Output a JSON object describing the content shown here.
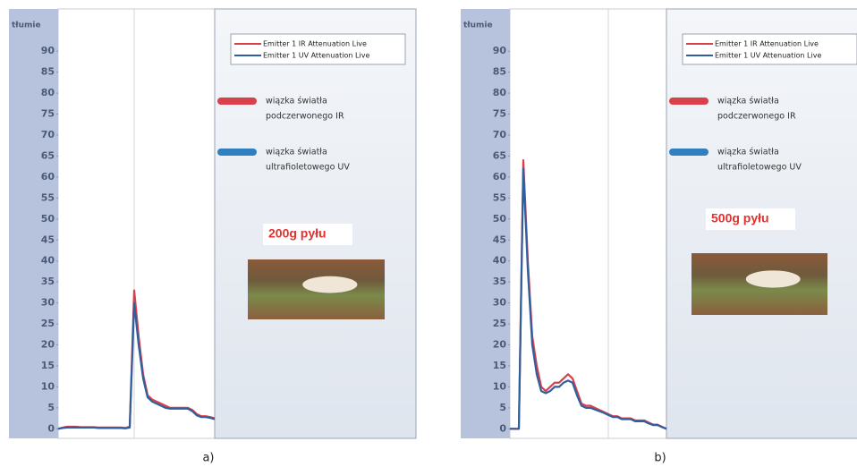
{
  "chart_data": [
    {
      "type": "line",
      "axis_label": "tłumie",
      "ylim": [
        -1,
        99
      ],
      "yticks": [
        0,
        5,
        10,
        15,
        20,
        25,
        30,
        35,
        40,
        45,
        50,
        55,
        60,
        65,
        70,
        75,
        80,
        85,
        90
      ],
      "series": [
        {
          "name": "Emitter 1 IR Attenuation Live",
          "color": "#d9404a",
          "values": [
            0,
            0.3,
            0.5,
            0.5,
            0.5,
            0.4,
            0.4,
            0.4,
            0.4,
            0.3,
            0.3,
            0.3,
            0.3,
            0.3,
            0.3,
            0.2,
            0.5,
            33,
            22,
            13,
            8,
            7,
            6.5,
            6,
            5.5,
            5,
            5,
            5,
            5,
            5,
            4.5,
            3.5,
            3,
            3,
            2.8,
            2.5
          ]
        },
        {
          "name": "Emitter 1 UV Attenuation Live",
          "color": "#2f5f9e",
          "values": [
            0,
            0.2,
            0.3,
            0.3,
            0.3,
            0.3,
            0.3,
            0.3,
            0.3,
            0.2,
            0.2,
            0.2,
            0.2,
            0.2,
            0.2,
            0.1,
            0.3,
            30,
            20,
            12,
            7.5,
            6.5,
            6,
            5.5,
            5,
            4.8,
            4.8,
            4.8,
            4.8,
            4.8,
            4.2,
            3.2,
            2.8,
            2.8,
            2.6,
            2.3
          ]
        }
      ],
      "annotations": [
        {
          "lines": [
            "wiązka światła",
            "podczerwonego IR"
          ],
          "color": "#d9404a"
        },
        {
          "lines": [
            "wiązka światła",
            "ultrafioletowego UV"
          ],
          "color": "#2f7fc1"
        }
      ],
      "highlight": "200g pyłu",
      "panel_label": "a)"
    },
    {
      "type": "line",
      "axis_label": "tłumie",
      "ylim": [
        -1,
        99
      ],
      "yticks": [
        0,
        5,
        10,
        15,
        20,
        25,
        30,
        35,
        40,
        45,
        50,
        55,
        60,
        65,
        70,
        75,
        80,
        85,
        90
      ],
      "series": [
        {
          "name": "Emitter 1 IR Attenuation Live",
          "color": "#d9404a",
          "values": [
            0,
            0,
            0,
            64,
            40,
            22,
            15,
            10,
            9,
            10,
            11,
            11,
            12,
            13,
            12,
            9,
            6,
            5.5,
            5.5,
            5,
            4.5,
            4,
            3.5,
            3,
            3,
            2.5,
            2.5,
            2.5,
            2,
            2,
            2,
            1.5,
            1,
            1,
            0.5,
            0
          ]
        },
        {
          "name": "Emitter 1 UV Attenuation Live",
          "color": "#2f5f9e",
          "values": [
            0,
            0,
            0,
            62,
            38,
            20,
            13,
            9,
            8.5,
            9,
            10,
            10,
            11,
            11.5,
            11,
            8,
            5.5,
            5,
            5,
            4.6,
            4.2,
            3.8,
            3.3,
            2.8,
            2.8,
            2.3,
            2.3,
            2.3,
            1.8,
            1.8,
            1.8,
            1.3,
            0.9,
            0.9,
            0.4,
            0
          ]
        }
      ],
      "annotations": [
        {
          "lines": [
            "wiązka światła",
            "podczerwonego IR"
          ],
          "color": "#d9404a"
        },
        {
          "lines": [
            "wiązka światła",
            "ultrafioletowego UV"
          ],
          "color": "#2f7fc1"
        }
      ],
      "highlight": "500g pyłu",
      "panel_label": "b)"
    }
  ]
}
